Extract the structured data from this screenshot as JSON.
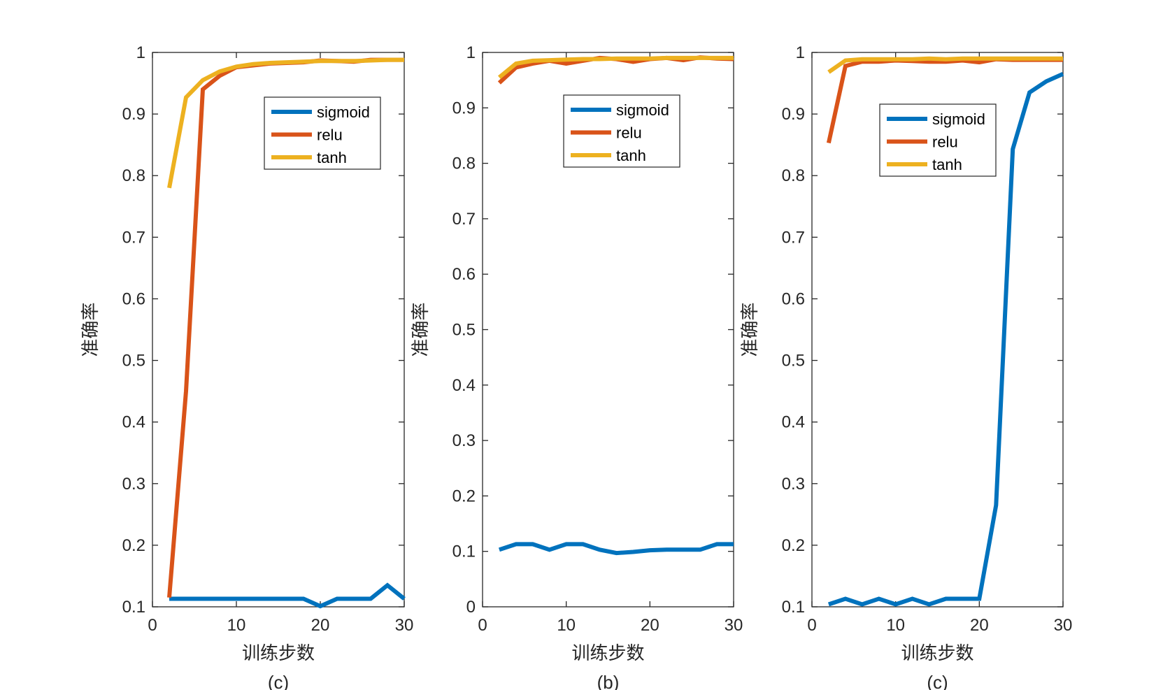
{
  "chart_data": [
    {
      "type": "line",
      "panel_label": "(c)",
      "xlabel": "训练步数",
      "ylabel": "准确率",
      "xlim": [
        0,
        30
      ],
      "ylim": [
        0.1,
        1
      ],
      "xticks": [
        "0",
        "10",
        "20",
        "30"
      ],
      "yticks": [
        "0.1",
        "0.2",
        "0.3",
        "0.4",
        "0.5",
        "0.6",
        "0.7",
        "0.8",
        "0.9",
        "1"
      ],
      "legend_position": "top-right",
      "grid": false,
      "x": [
        2,
        4,
        6,
        8,
        10,
        12,
        14,
        16,
        18,
        20,
        22,
        24,
        26,
        28,
        30
      ],
      "series": [
        {
          "name": "sigmoid",
          "color": "#0072BD",
          "values": [
            0.113,
            0.113,
            0.113,
            0.113,
            0.113,
            0.113,
            0.113,
            0.113,
            0.113,
            0.101,
            0.113,
            0.113,
            0.113,
            0.135,
            0.113
          ]
        },
        {
          "name": "relu",
          "color": "#D95319",
          "values": [
            0.115,
            0.45,
            0.94,
            0.962,
            0.976,
            0.979,
            0.982,
            0.983,
            0.984,
            0.987,
            0.986,
            0.985,
            0.988,
            0.988,
            0.988
          ]
        },
        {
          "name": "tanh",
          "color": "#EDB120",
          "values": [
            0.78,
            0.927,
            0.955,
            0.969,
            0.977,
            0.981,
            0.983,
            0.984,
            0.985,
            0.986,
            0.986,
            0.986,
            0.987,
            0.988,
            0.988
          ]
        }
      ]
    },
    {
      "type": "line",
      "panel_label": "(b)",
      "xlabel": "训练步数",
      "ylabel": "准确率",
      "xlim": [
        0,
        30
      ],
      "ylim": [
        0,
        1
      ],
      "xticks": [
        "0",
        "10",
        "20",
        "30"
      ],
      "yticks": [
        "0",
        "0.1",
        "0.2",
        "0.3",
        "0.4",
        "0.5",
        "0.6",
        "0.7",
        "0.8",
        "0.9",
        "1"
      ],
      "legend_position": "top-right",
      "grid": false,
      "x": [
        2,
        4,
        6,
        8,
        10,
        12,
        14,
        16,
        18,
        20,
        22,
        24,
        26,
        28,
        30
      ],
      "series": [
        {
          "name": "sigmoid",
          "color": "#0072BD",
          "values": [
            0.103,
            0.113,
            0.113,
            0.103,
            0.113,
            0.113,
            0.103,
            0.097,
            0.099,
            0.102,
            0.103,
            0.103,
            0.103,
            0.113,
            0.113
          ]
        },
        {
          "name": "relu",
          "color": "#D95319",
          "values": [
            0.945,
            0.973,
            0.98,
            0.985,
            0.98,
            0.985,
            0.99,
            0.988,
            0.983,
            0.988,
            0.99,
            0.986,
            0.991,
            0.989,
            0.988
          ]
        },
        {
          "name": "tanh",
          "color": "#EDB120",
          "values": [
            0.955,
            0.98,
            0.985,
            0.986,
            0.987,
            0.988,
            0.988,
            0.989,
            0.989,
            0.989,
            0.99,
            0.99,
            0.99,
            0.99,
            0.99
          ]
        }
      ]
    },
    {
      "type": "line",
      "panel_label": "(c)",
      "xlabel": "训练步数",
      "ylabel": "准确率",
      "xlim": [
        0,
        30
      ],
      "ylim": [
        0.1,
        1
      ],
      "xticks": [
        "0",
        "10",
        "20",
        "30"
      ],
      "yticks": [
        "0.1",
        "0.2",
        "0.3",
        "0.4",
        "0.5",
        "0.6",
        "0.7",
        "0.8",
        "0.9",
        "1"
      ],
      "legend_position": "top-right",
      "grid": false,
      "x": [
        2,
        4,
        6,
        8,
        10,
        12,
        14,
        16,
        18,
        20,
        22,
        24,
        26,
        28,
        30
      ],
      "series": [
        {
          "name": "sigmoid",
          "color": "#0072BD",
          "values": [
            0.104,
            0.113,
            0.104,
            0.113,
            0.104,
            0.113,
            0.104,
            0.113,
            0.113,
            0.113,
            0.265,
            0.843,
            0.935,
            0.953,
            0.965
          ]
        },
        {
          "name": "relu",
          "color": "#D95319",
          "values": [
            0.853,
            0.978,
            0.985,
            0.985,
            0.987,
            0.986,
            0.985,
            0.985,
            0.987,
            0.984,
            0.989,
            0.988,
            0.988,
            0.988,
            0.988
          ]
        },
        {
          "name": "tanh",
          "color": "#EDB120",
          "values": [
            0.968,
            0.987,
            0.989,
            0.989,
            0.989,
            0.989,
            0.99,
            0.989,
            0.99,
            0.99,
            0.99,
            0.99,
            0.99,
            0.99,
            0.99
          ]
        }
      ]
    }
  ]
}
